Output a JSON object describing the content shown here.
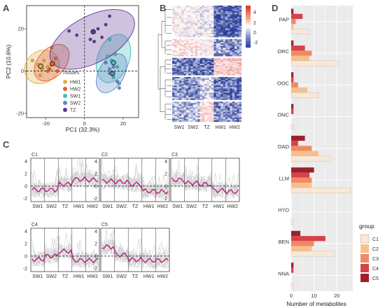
{
  "colors": {
    "HW1": "#e3ad43",
    "HW2": "#e25e35",
    "SW1": "#3fbdb9",
    "SW2": "#5d86c9",
    "TZ": "#5c3594",
    "C1": "#f8e8d8",
    "C2": "#f6c08d",
    "C3": "#ef8a62",
    "C4": "#d6414a",
    "C5": "#9e1f2b",
    "profile": "#b7287e",
    "heat_high": "#d7302b",
    "heat_mid": "#ffffff",
    "heat_low": "#283c99"
  },
  "panels": {
    "A": {
      "label": "A",
      "xlabel": "PC1 (32.3%)",
      "ylabel": "PC2 (10.6%)",
      "xlim": [
        -30,
        28
      ],
      "ylim": [
        -22,
        31
      ],
      "xticks": [
        "-20",
        "0",
        "20"
      ],
      "yticks": [
        "20",
        "0",
        "-20"
      ],
      "legend_title": "Tissues",
      "legend": [
        "HW1",
        "HW2",
        "SW1",
        "SW2",
        "TZ"
      ]
    },
    "B": {
      "label": "B",
      "col_labels": [
        "SW1",
        "SW2",
        "TZ",
        "HW1",
        "HW2"
      ],
      "scale_ticks": [
        "4",
        "2",
        "0",
        "-2"
      ]
    },
    "C": {
      "label": "C",
      "x_labels": [
        "SW1",
        "SW2",
        "TZ",
        "HW1",
        "HW2"
      ],
      "yticks": [
        "4",
        "2",
        "0",
        "-2"
      ],
      "clusters": [
        "C1",
        "C2",
        "C3",
        "C4",
        "C5"
      ]
    },
    "D": {
      "label": "D",
      "xlabel": "Number of metabolites",
      "xticks": [
        "0",
        "10",
        "20"
      ],
      "legend_title": "group",
      "legend": [
        "C1",
        "C2",
        "C3",
        "C4",
        "C5"
      ]
    }
  },
  "chart_data": [
    {
      "type": "scatter",
      "title": "",
      "xlabel": "PC1 (32.3%)",
      "ylabel": "PC2 (10.6%)",
      "xlim": [
        -30,
        28
      ],
      "ylim": [
        -22,
        31
      ],
      "series": [
        {
          "name": "HW1",
          "points": [
            [
              -27,
              5
            ],
            [
              -24,
              3
            ],
            [
              -22,
              1
            ],
            [
              -19,
              2
            ],
            [
              -21,
              5
            ],
            [
              -23,
              -2
            ]
          ]
        },
        {
          "name": "HW2",
          "points": [
            [
              -19,
              0
            ],
            [
              -17,
              3
            ],
            [
              -15,
              6
            ],
            [
              -18,
              1
            ],
            [
              -14,
              0
            ],
            [
              -17,
              11
            ]
          ]
        },
        {
          "name": "SW1",
          "points": [
            [
              12,
              7
            ],
            [
              14,
              5
            ],
            [
              16,
              8
            ],
            [
              17,
              2
            ],
            [
              15,
              -3
            ],
            [
              18,
              -6
            ],
            [
              13,
              15
            ]
          ]
        },
        {
          "name": "SW2",
          "points": [
            [
              11,
              4
            ],
            [
              13,
              1
            ],
            [
              15,
              2
            ],
            [
              18,
              -8
            ],
            [
              17,
              -5
            ],
            [
              13,
              -1
            ]
          ]
        },
        {
          "name": "TZ",
          "points": [
            [
              -4,
              17
            ],
            [
              3,
              15
            ],
            [
              7,
              20
            ],
            [
              11,
              22
            ],
            [
              13,
              26
            ],
            [
              -8,
              19
            ],
            [
              9,
              16
            ],
            [
              5,
              14
            ]
          ]
        }
      ]
    },
    {
      "type": "heatmap",
      "title": "",
      "columns": [
        "SW1",
        "SW2",
        "TZ",
        "HW1",
        "HW2"
      ],
      "value_range": [
        -2.5,
        4.5
      ],
      "row_blocks": [
        {
          "rows": 22,
          "means": [
            0.2,
            0.1,
            0.0,
            -1.2,
            -1.3
          ]
        },
        {
          "rows": 12,
          "means": [
            0.6,
            0.5,
            0.2,
            -0.8,
            -0.9
          ]
        },
        {
          "rows": 12,
          "means": [
            -1.0,
            -1.0,
            -1.1,
            0.9,
            1.0
          ]
        },
        {
          "rows": 16,
          "means": [
            -0.8,
            -0.9,
            -0.3,
            -1.1,
            -1.1
          ]
        },
        {
          "rows": 14,
          "means": [
            -0.7,
            -0.6,
            0.7,
            -0.9,
            -0.9
          ]
        }
      ]
    },
    {
      "type": "line",
      "title": "",
      "x": [
        "SW1",
        "SW2",
        "TZ",
        "HW1",
        "HW2"
      ],
      "ylim": [
        -2.5,
        4.5
      ],
      "series": [
        {
          "name": "C1",
          "values": [
            -0.6,
            -0.6,
            0.3,
            1.1,
            1.0
          ]
        },
        {
          "name": "C2",
          "values": [
            0.8,
            0.7,
            0.3,
            -0.8,
            -0.9
          ]
        },
        {
          "name": "C3",
          "values": [
            1.0,
            0.5,
            0.3,
            -0.7,
            -0.9
          ]
        },
        {
          "name": "C4",
          "values": [
            -0.5,
            0.0,
            0.8,
            -0.7,
            -0.7
          ]
        },
        {
          "name": "C5",
          "values": [
            1.5,
            0.2,
            -0.6,
            -0.7,
            -0.7
          ]
        }
      ]
    },
    {
      "type": "bar",
      "orientation": "horizontal",
      "title": "",
      "xlabel": "Number of metabolites",
      "xlim": [
        0,
        27
      ],
      "categories": [
        "PAP",
        "ORC",
        "OOC",
        "ONC",
        "OAD",
        "LLM",
        "HYD",
        "BEN",
        "NNA"
      ],
      "series": [
        {
          "name": "C5",
          "values": [
            1,
            1,
            1,
            1,
            6,
            10,
            0,
            4,
            1
          ]
        },
        {
          "name": "C4",
          "values": [
            5,
            6,
            1,
            1,
            3,
            8,
            0,
            15,
            1
          ]
        },
        {
          "name": "C3",
          "values": [
            2,
            9,
            3,
            0,
            9,
            9,
            0,
            10,
            0
          ]
        },
        {
          "name": "C2",
          "values": [
            1,
            8,
            7,
            0,
            12,
            9,
            0,
            9,
            0
          ]
        },
        {
          "name": "C1",
          "values": [
            8,
            21,
            12,
            1,
            17,
            26,
            1,
            19,
            1
          ]
        }
      ]
    }
  ]
}
